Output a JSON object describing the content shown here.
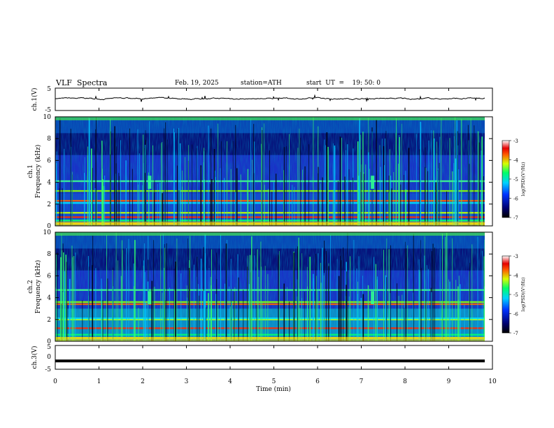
{
  "header": {
    "title": "VLF  Spectra",
    "date": "Feb. 19, 2025",
    "station": "station=ATH",
    "start": "start  UT  =    19: 50: 0"
  },
  "chart_data": [
    {
      "type": "line",
      "title": "",
      "ylabel": "ch.1(V)",
      "ylim": [
        -5,
        5
      ],
      "y_ticks": [
        "5",
        "-5"
      ],
      "xlim": [
        0,
        10
      ],
      "description_values": {
        "baseline": 0.3,
        "amplitude": 0.7
      },
      "series": [
        {
          "color": "#000000"
        }
      ]
    },
    {
      "type": "heatmap",
      "ylabel": "ch.1",
      "ylabel2": "Frequency  (kHz)",
      "ylim": [
        0,
        10
      ],
      "y_ticks": [
        "0",
        "2",
        "4",
        "6",
        "8",
        "10"
      ],
      "xlim": [
        0,
        10
      ],
      "colorbar": {
        "label": "log(PSD)(V²/Hz)",
        "range": [
          -7,
          -3
        ],
        "ticks": [
          "-3",
          "-4",
          "-5",
          "-6",
          "-7"
        ]
      },
      "bands_khz": [
        0.2,
        0.5,
        0.8,
        1.2,
        2.1,
        2.3,
        3.2,
        4.1
      ]
    },
    {
      "type": "heatmap",
      "ylabel": "ch.2",
      "ylabel2": "Frequency  (kHz)",
      "ylim": [
        0,
        10
      ],
      "y_ticks": [
        "0",
        "2",
        "4",
        "6",
        "8",
        "10"
      ],
      "xlim": [
        0,
        10
      ],
      "colorbar": {
        "label": "log(PSD)(V²/Hz)",
        "range": [
          -7,
          -3
        ],
        "ticks": [
          "-3",
          "-4",
          "-5",
          "-6",
          "-7"
        ]
      },
      "bands_khz": [
        0.3,
        0.6,
        1.2,
        2.0,
        2.1,
        3.4,
        3.6,
        4.7
      ]
    },
    {
      "type": "line",
      "ylabel": "ch.3(V)",
      "ylim": [
        -5,
        5
      ],
      "y_ticks": [
        "5",
        "0",
        "-5"
      ],
      "xlim": [
        0,
        10
      ],
      "xlabel": "Time  (min)",
      "x_ticks": [
        "0",
        "1",
        "2",
        "3",
        "4",
        "5",
        "6",
        "7",
        "8",
        "9",
        "10"
      ],
      "series": [
        {
          "constant": -1.5,
          "color": "#000000"
        }
      ]
    }
  ],
  "colors": {
    "axis": "#000000",
    "background": "#ffffff"
  }
}
